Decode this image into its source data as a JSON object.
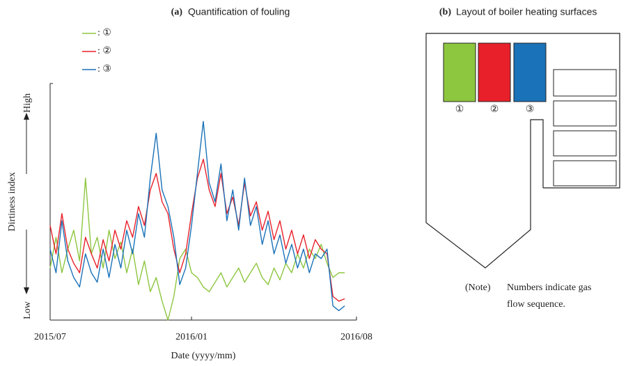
{
  "chart_data": {
    "type": "line",
    "title_label": "(a)",
    "title": "Quantification of fouling",
    "y_label": "Dirtiness index",
    "x_label": "Date (yyyy/mm)",
    "x": [
      0,
      0.25,
      0.5,
      0.75,
      1,
      1.25,
      1.5,
      1.75,
      2,
      2.25,
      2.5,
      2.75,
      3,
      3.25,
      3.5,
      3.75,
      4,
      4.25,
      4.5,
      4.75,
      5,
      5.25,
      5.5,
      5.75,
      6,
      6.25,
      6.5,
      6.75,
      7,
      7.25,
      7.5,
      7.75,
      8,
      8.25,
      8.5,
      8.75,
      9,
      9.25,
      9.5,
      9.75,
      10,
      10.25,
      10.5,
      10.75,
      11,
      11.25,
      11.5,
      11.75,
      12,
      12.25,
      12.5
    ],
    "series": [
      {
        "name": ": ①",
        "color": "#8dc63f",
        "values": [
          22,
          35,
          20,
          30,
          38,
          25,
          60,
          28,
          35,
          22,
          38,
          26,
          33,
          20,
          30,
          15,
          25,
          12,
          18,
          8,
          0,
          10,
          26,
          30,
          20,
          18,
          14,
          12,
          16,
          20,
          14,
          18,
          22,
          16,
          20,
          24,
          18,
          15,
          22,
          17,
          24,
          20,
          28,
          22,
          30,
          26,
          32,
          24,
          18,
          20,
          20
        ]
      },
      {
        "name": ": ②",
        "color": "#e8202a",
        "values": [
          40,
          28,
          45,
          30,
          24,
          20,
          35,
          28,
          22,
          34,
          25,
          38,
          30,
          42,
          35,
          48,
          40,
          55,
          62,
          50,
          45,
          30,
          20,
          28,
          45,
          60,
          68,
          55,
          48,
          62,
          45,
          52,
          40,
          58,
          44,
          50,
          38,
          46,
          34,
          42,
          30,
          38,
          28,
          36,
          26,
          34,
          30,
          28,
          10,
          8,
          9
        ]
      },
      {
        "name": ": ③",
        "color": "#1a72b8",
        "values": [
          30,
          20,
          42,
          25,
          18,
          14,
          28,
          20,
          16,
          30,
          18,
          32,
          22,
          38,
          28,
          45,
          35,
          60,
          79,
          55,
          48,
          35,
          15,
          22,
          40,
          62,
          84,
          58,
          50,
          66,
          42,
          55,
          38,
          60,
          40,
          48,
          32,
          42,
          28,
          36,
          24,
          32,
          22,
          30,
          20,
          28,
          26,
          30,
          6,
          4,
          6
        ]
      }
    ],
    "xlim": [
      0,
      13
    ],
    "xticks": [
      {
        "value": 0,
        "label": "2015/07"
      },
      {
        "value": 6,
        "label": "2016/01"
      },
      {
        "value": 13,
        "label": "2016/08"
      }
    ],
    "ylim": [
      0,
      100
    ],
    "yticks": [
      {
        "value": 0,
        "label": "Low"
      },
      {
        "value": 100,
        "label": "High"
      }
    ]
  },
  "diagram": {
    "title_label": "(b)",
    "title": "Layout of boiler heating surfaces",
    "surfaces": [
      "①",
      "②",
      "③"
    ],
    "note_label": "(Note)",
    "note_lines": [
      "Numbers indicate gas",
      "flow sequence."
    ]
  }
}
